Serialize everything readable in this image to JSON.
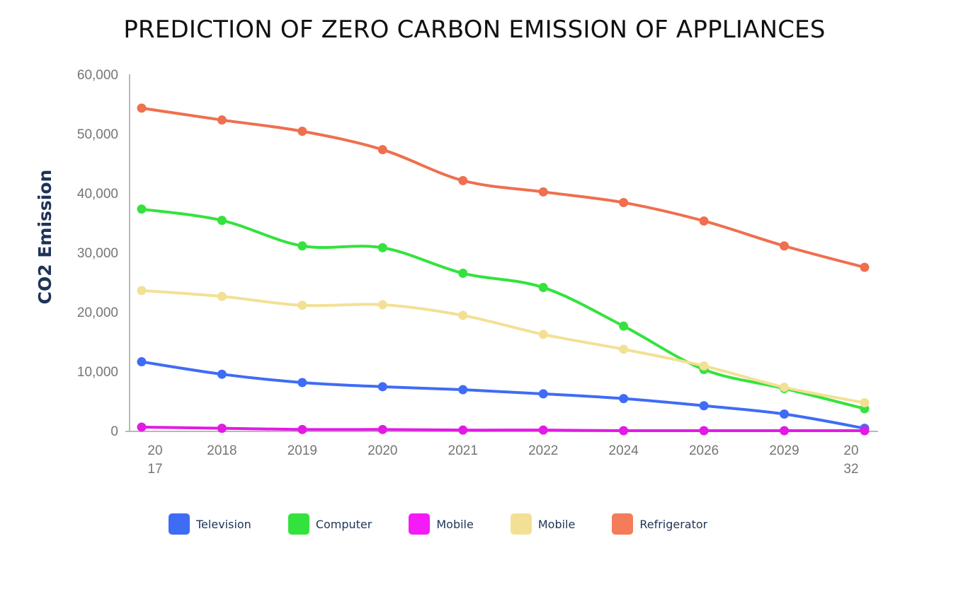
{
  "chart_data": {
    "type": "line",
    "title": "PREDICTION OF ZERO CARBON EMISSION OF APPLIANCES",
    "xlabel": "",
    "ylabel": "CO2  Emission",
    "ylim": [
      0,
      60000
    ],
    "yticks": [
      "0",
      "10,000",
      "20,000",
      "30,000",
      "40,000",
      "50,000",
      "60,000"
    ],
    "categories": [
      "2017",
      "2018",
      "2019",
      "2020",
      "2021",
      "2022",
      "2024",
      "2026",
      "2029",
      "2032"
    ],
    "category_labels": [
      "20\n17",
      "2018",
      "2019",
      "2020",
      "2021",
      "2022",
      "2024",
      "2026",
      "2029",
      "20\n32"
    ],
    "grid": false,
    "legend_position": "bottom",
    "series": [
      {
        "name": "Refrigerator",
        "color": "#ef6f4f",
        "values": [
          54300,
          52300,
          50400,
          47300,
          42100,
          40200,
          38400,
          35300,
          31100,
          27500
        ]
      },
      {
        "name": "Computer",
        "color": "#34e23e",
        "values": [
          37300,
          35400,
          31100,
          30800,
          26500,
          24100,
          17600,
          10300,
          7100,
          3700
        ]
      },
      {
        "name": "Mobile",
        "color": "#f3e095",
        "values": [
          23600,
          22600,
          21100,
          21200,
          19400,
          16200,
          13700,
          10900,
          7300,
          4700
        ]
      },
      {
        "name": "Television",
        "color": "#3f6cf5",
        "values": [
          11600,
          9500,
          8100,
          7400,
          6900,
          6200,
          5400,
          4200,
          2800,
          400
        ]
      },
      {
        "name": "Mobile",
        "color": "#e21ae4",
        "values": [
          600,
          400,
          200,
          200,
          100,
          100,
          0,
          0,
          0,
          0
        ]
      }
    ]
  },
  "legend": [
    {
      "label": "Television",
      "color": "#3f6cf5"
    },
    {
      "label": "Computer",
      "color": "#34e23e"
    },
    {
      "label": "Mobile",
      "color": "#f51af8"
    },
    {
      "label": "Mobile",
      "color": "#f3e095"
    },
    {
      "label": "Refrigerator",
      "color": "#f47c5a"
    }
  ]
}
